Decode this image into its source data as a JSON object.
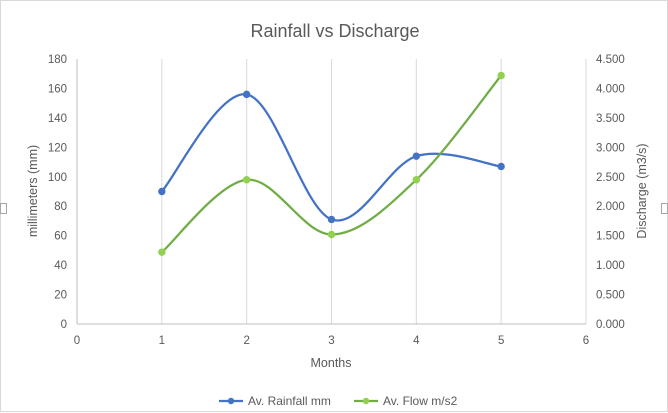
{
  "chart_data": {
    "type": "scatter",
    "title": "Rainfall vs Discharge",
    "xlabel": "Months",
    "ylabel": "millimeters (mm)",
    "y2label": "Discharge (m3/s)",
    "xlim": [
      0,
      6
    ],
    "ylim": [
      0,
      180
    ],
    "y2lim": [
      0,
      4.5
    ],
    "x_ticks": [
      "0",
      "1",
      "2",
      "3",
      "4",
      "5",
      "6"
    ],
    "y_ticks": [
      "0",
      "20",
      "40",
      "60",
      "80",
      "100",
      "120",
      "140",
      "160",
      "180"
    ],
    "y2_ticks": [
      "0.000",
      "0.500",
      "1.000",
      "1.500",
      "2.000",
      "2.500",
      "3.000",
      "3.500",
      "4.000",
      "4.500"
    ],
    "grid": "vertical",
    "legend_position": "bottom",
    "smooth_lines": true,
    "series": [
      {
        "name": "Av. Rainfall mm",
        "axis": "left",
        "color": "#4472c4",
        "x": [
          1,
          2,
          3,
          4,
          5
        ],
        "y": [
          90,
          156,
          71,
          114,
          107
        ]
      },
      {
        "name": "Av. Flow m/s2",
        "axis": "right",
        "color": "#70ad47",
        "marker_color": "#92d050",
        "x": [
          1,
          2,
          3,
          4,
          5
        ],
        "y": [
          1.22,
          2.45,
          1.52,
          2.45,
          4.22
        ]
      }
    ]
  }
}
